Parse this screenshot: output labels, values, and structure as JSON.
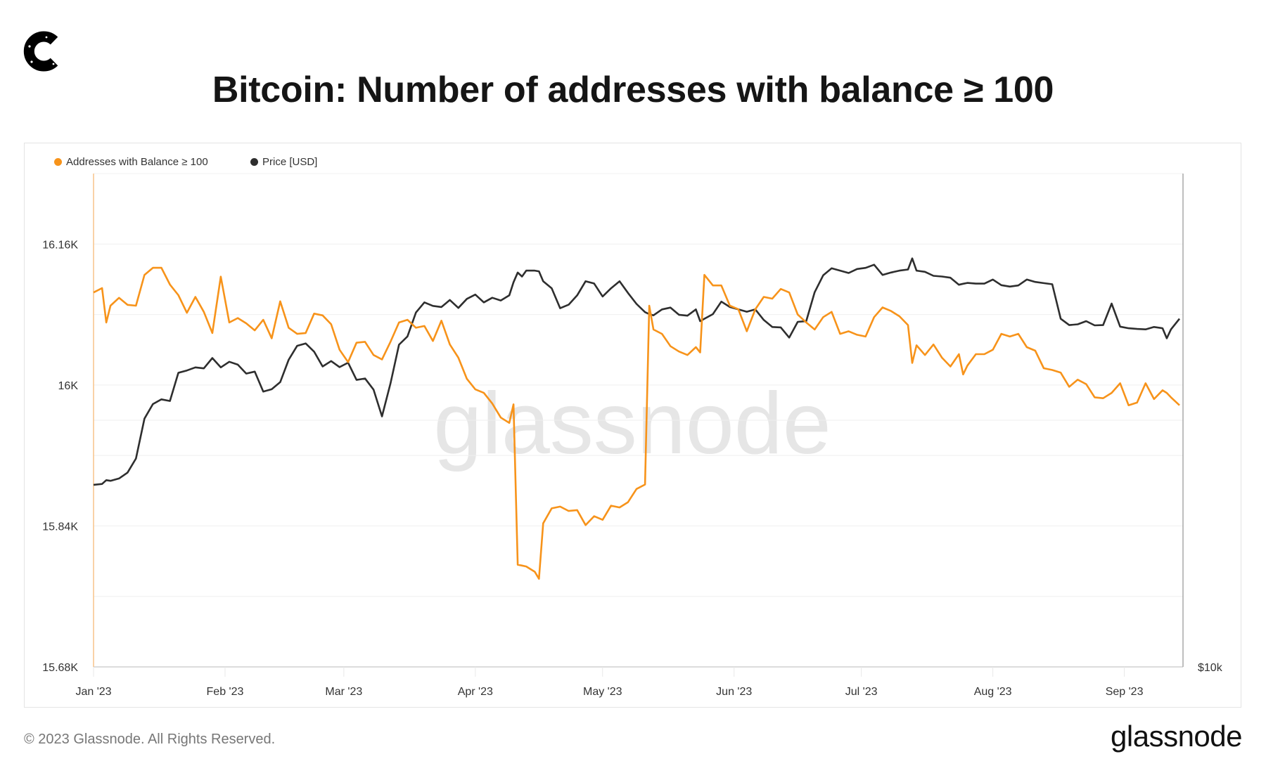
{
  "header": {
    "title": "Bitcoin: Number of addresses with balance ≥ 100",
    "logo_icon": "c-logo-icon"
  },
  "footer": {
    "copyright": "© 2023 Glassnode. All Rights Reserved.",
    "brand": "glassnode"
  },
  "watermark": "glassnode",
  "colors": {
    "addresses": "#f7931a",
    "price": "#2e2e2e",
    "grid": "#efefef"
  },
  "chart_data": {
    "type": "line",
    "title": "Bitcoin: Number of addresses with balance ≥ 100",
    "legend_placement": "top-left",
    "grid": true,
    "x_ticks": [
      {
        "date": "2023-01-01",
        "label": "Jan '23"
      },
      {
        "date": "2023-02-01",
        "label": "Feb '23"
      },
      {
        "date": "2023-03-01",
        "label": "Mar '23"
      },
      {
        "date": "2023-04-01",
        "label": "Apr '23"
      },
      {
        "date": "2023-05-01",
        "label": "May '23"
      },
      {
        "date": "2023-06-01",
        "label": "Jun '23"
      },
      {
        "date": "2023-07-01",
        "label": "Jul '23"
      },
      {
        "date": "2023-08-01",
        "label": "Aug '23"
      },
      {
        "date": "2023-09-01",
        "label": "Sep '23"
      }
    ],
    "xlim": [
      "2023-01-01",
      "2023-09-14"
    ],
    "y_left": {
      "ylim": [
        15680,
        16240
      ],
      "ticks": [
        {
          "value": 16160,
          "label": "16.16K"
        },
        {
          "value": 16000,
          "label": "16K"
        },
        {
          "value": 15840,
          "label": "15.84K"
        },
        {
          "value": 15680,
          "label": "15.68K"
        }
      ]
    },
    "y_right": {
      "scale": "log",
      "ylim": [
        10000,
        40000
      ],
      "ticks": [
        {
          "value": 10000,
          "label": "$10k"
        }
      ]
    },
    "x": [
      "2023-01-01",
      "2023-01-03",
      "2023-01-04",
      "2023-01-05",
      "2023-01-07",
      "2023-01-09",
      "2023-01-11",
      "2023-01-13",
      "2023-01-15",
      "2023-01-17",
      "2023-01-19",
      "2023-01-21",
      "2023-01-23",
      "2023-01-25",
      "2023-01-27",
      "2023-01-29",
      "2023-01-31",
      "2023-02-02",
      "2023-02-04",
      "2023-02-06",
      "2023-02-08",
      "2023-02-10",
      "2023-02-12",
      "2023-02-14",
      "2023-02-16",
      "2023-02-18",
      "2023-02-20",
      "2023-02-22",
      "2023-02-24",
      "2023-02-26",
      "2023-02-28",
      "2023-03-02",
      "2023-03-04",
      "2023-03-06",
      "2023-03-08",
      "2023-03-10",
      "2023-03-12",
      "2023-03-14",
      "2023-03-16",
      "2023-03-18",
      "2023-03-20",
      "2023-03-22",
      "2023-03-24",
      "2023-03-26",
      "2023-03-28",
      "2023-03-30",
      "2023-04-01",
      "2023-04-03",
      "2023-04-05",
      "2023-04-07",
      "2023-04-09",
      "2023-04-10",
      "2023-04-11",
      "2023-04-12",
      "2023-04-13",
      "2023-04-15",
      "2023-04-16",
      "2023-04-17",
      "2023-04-19",
      "2023-04-21",
      "2023-04-23",
      "2023-04-25",
      "2023-04-27",
      "2023-04-29",
      "2023-05-01",
      "2023-05-03",
      "2023-05-05",
      "2023-05-07",
      "2023-05-09",
      "2023-05-11",
      "2023-05-12",
      "2023-05-13",
      "2023-05-15",
      "2023-05-17",
      "2023-05-19",
      "2023-05-21",
      "2023-05-23",
      "2023-05-24",
      "2023-05-25",
      "2023-05-27",
      "2023-05-29",
      "2023-05-31",
      "2023-06-02",
      "2023-06-04",
      "2023-06-06",
      "2023-06-08",
      "2023-06-10",
      "2023-06-12",
      "2023-06-14",
      "2023-06-16",
      "2023-06-18",
      "2023-06-20",
      "2023-06-22",
      "2023-06-24",
      "2023-06-26",
      "2023-06-28",
      "2023-06-30",
      "2023-07-02",
      "2023-07-04",
      "2023-07-06",
      "2023-07-08",
      "2023-07-10",
      "2023-07-12",
      "2023-07-13",
      "2023-07-14",
      "2023-07-16",
      "2023-07-18",
      "2023-07-20",
      "2023-07-22",
      "2023-07-24",
      "2023-07-25",
      "2023-07-26",
      "2023-07-28",
      "2023-07-30",
      "2023-08-01",
      "2023-08-03",
      "2023-08-05",
      "2023-08-07",
      "2023-08-09",
      "2023-08-11",
      "2023-08-13",
      "2023-08-15",
      "2023-08-17",
      "2023-08-19",
      "2023-08-21",
      "2023-08-23",
      "2023-08-25",
      "2023-08-27",
      "2023-08-29",
      "2023-08-31",
      "2023-09-02",
      "2023-09-04",
      "2023-09-06",
      "2023-09-08",
      "2023-09-10",
      "2023-09-11",
      "2023-09-12",
      "2023-09-14"
    ],
    "series": [
      {
        "name": "Addresses with Balance ≥ 100",
        "axis": "left",
        "values": [
          16105,
          16110,
          16071,
          16090,
          16099,
          16091,
          16090,
          16125,
          16133,
          16133,
          16114,
          16102,
          16082,
          16100,
          16083,
          16059,
          16123,
          16071,
          16076,
          16070,
          16062,
          16074,
          16053,
          16095,
          16065,
          16058,
          16059,
          16081,
          16079,
          16069,
          16040,
          16026,
          16048,
          16049,
          16034,
          16029,
          16049,
          16071,
          16074,
          16065,
          16067,
          16050,
          16073,
          16046,
          16031,
          16007,
          15995,
          15991,
          15979,
          15963,
          15957,
          15978,
          15796,
          15795,
          15794,
          15788,
          15780,
          15843,
          15860,
          15862,
          15857,
          15858,
          15841,
          15851,
          15847,
          15863,
          15861,
          15867,
          15882,
          15887,
          16090,
          16063,
          16058,
          16044,
          16038,
          16034,
          16043,
          16037,
          16125,
          16113,
          16113,
          16090,
          16086,
          16061,
          16086,
          16100,
          16098,
          16109,
          16105,
          16080,
          16071,
          16063,
          16077,
          16083,
          16058,
          16061,
          16057,
          16055,
          16077,
          16088,
          16084,
          16078,
          16068,
          16025,
          16045,
          16034,
          16046,
          16031,
          16021,
          16035,
          16012,
          16022,
          16035,
          16035,
          16040,
          16058,
          16055,
          16058,
          16043,
          16039,
          16019,
          16017,
          16014,
          15998,
          16006,
          16001,
          15986,
          15985,
          15991,
          16002,
          15977,
          15980,
          16002,
          15984,
          15994,
          15991,
          15986,
          15977
        ]
      },
      {
        "name": "Price [USD]",
        "axis": "right",
        "values": [
          16680,
          16720,
          16900,
          16870,
          16980,
          17260,
          17960,
          20090,
          20930,
          21210,
          21110,
          22850,
          23000,
          23200,
          23140,
          23820,
          23200,
          23570,
          23380,
          22800,
          22930,
          21680,
          21820,
          22260,
          23700,
          24650,
          24820,
          24250,
          23260,
          23620,
          23220,
          23510,
          22400,
          22490,
          21800,
          20220,
          22180,
          24730,
          25310,
          27070,
          27850,
          27580,
          27490,
          28040,
          27420,
          28130,
          28470,
          27850,
          28220,
          28000,
          28410,
          29470,
          30290,
          29950,
          30450,
          30450,
          30390,
          29560,
          28980,
          27400,
          27670,
          28410,
          29560,
          29370,
          28320,
          28980,
          29560,
          28600,
          27730,
          27100,
          26950,
          26860,
          27310,
          27450,
          26900,
          26830,
          27310,
          26420,
          26600,
          26950,
          27910,
          27490,
          27310,
          27130,
          27310,
          26510,
          25990,
          25960,
          25230,
          26370,
          26420,
          28660,
          30050,
          30650,
          30450,
          30250,
          30590,
          30690,
          30960,
          30090,
          30290,
          30450,
          30550,
          31520,
          30450,
          30350,
          30010,
          29950,
          29850,
          29270,
          29350,
          29420,
          29360,
          29360,
          29700,
          29230,
          29120,
          29210,
          29700,
          29500,
          29400,
          29310,
          26600,
          26130,
          26190,
          26420,
          26110,
          26130,
          27760,
          26020,
          25900,
          25850,
          25820,
          25990,
          25900,
          25180,
          25820,
          26600
        ]
      }
    ]
  }
}
